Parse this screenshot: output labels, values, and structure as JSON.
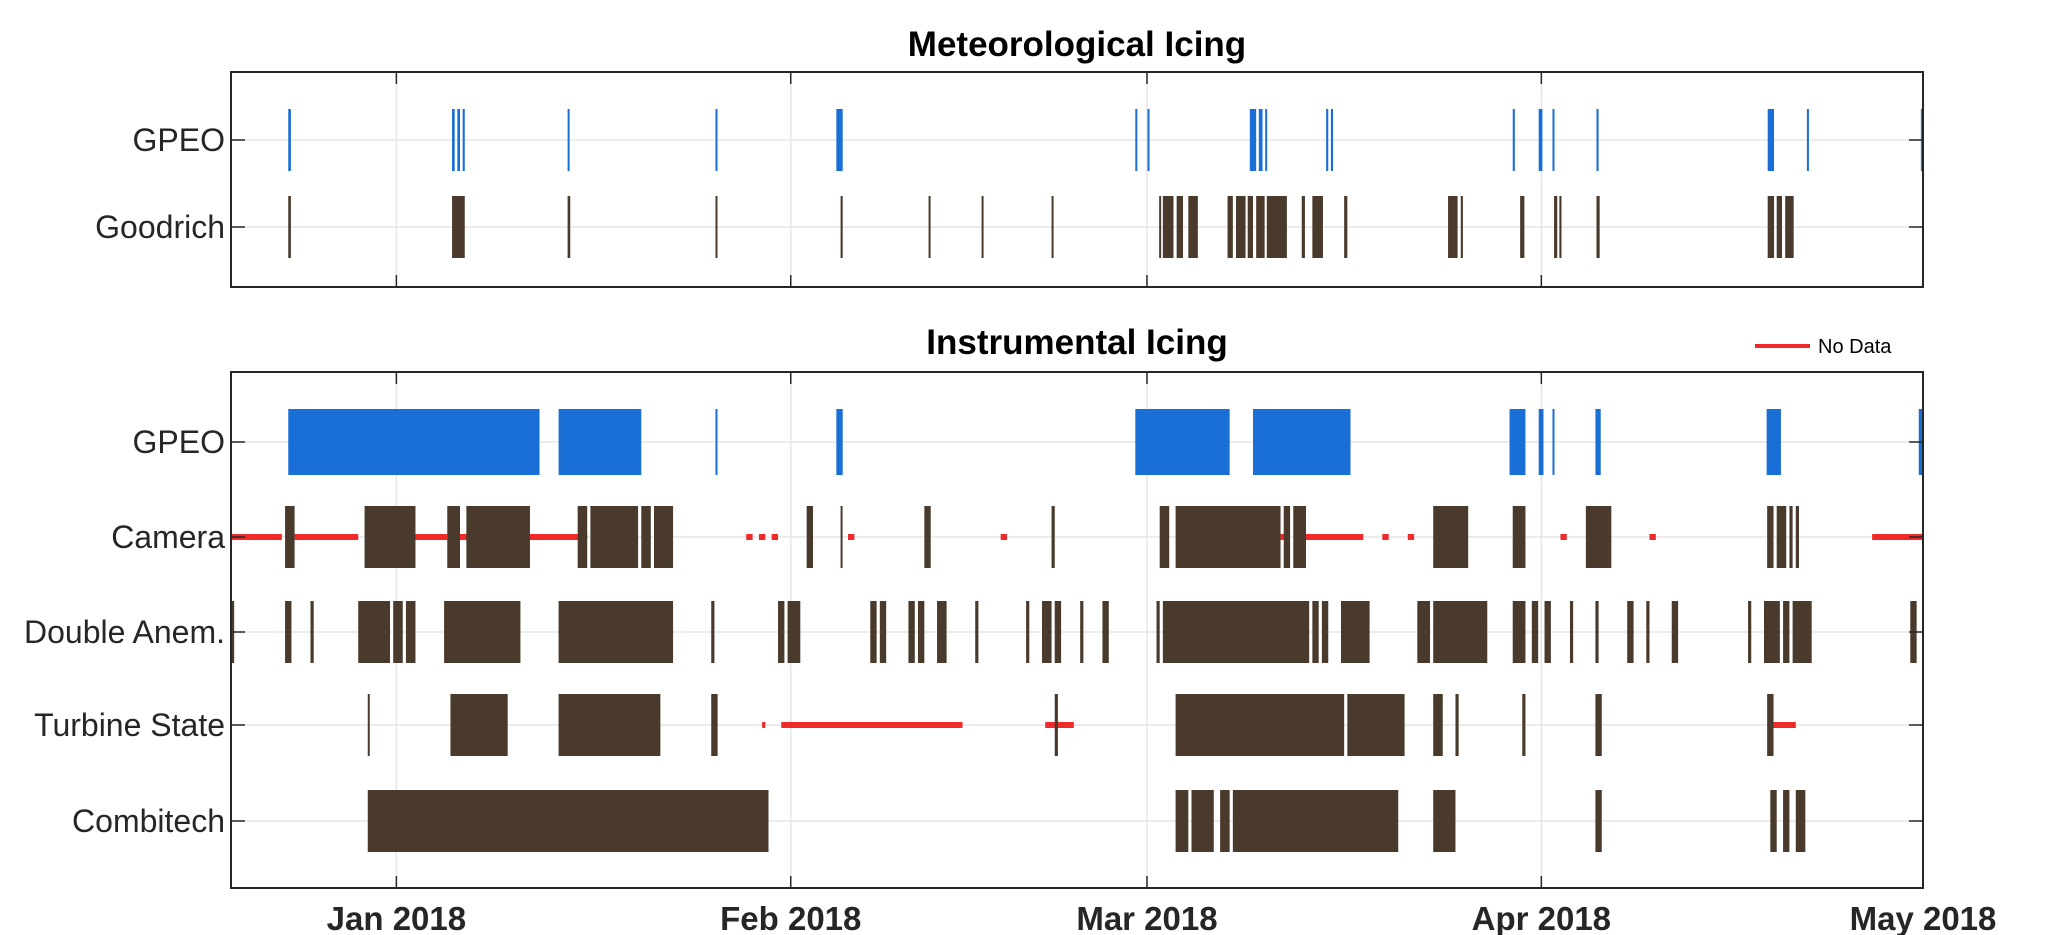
{
  "colors": {
    "gpeo": "#1a6fd6",
    "icing": "#4a3a2c",
    "nodata": "#ee2a2a",
    "grid": "#e6e6e6",
    "axis": "#262626"
  },
  "chart_data": [
    {
      "type": "timeline",
      "title": "Meteorological Icing",
      "x_range": [
        "2017-12-19",
        "2018-05-01"
      ],
      "x_ticks": [
        "2018-01-01",
        "2018-02-01",
        "2018-03-01",
        "2018-04-01",
        "2018-05-01"
      ],
      "x_tick_labels": [],
      "grid": true,
      "rows": [
        {
          "label": "GPEO",
          "kind": "gpeo",
          "intervals": [
            [
              "2017-12-23 12:00",
              "2017-12-23 17:00"
            ],
            [
              "2018-01-05 09:00",
              "2018-01-05 14:00"
            ],
            [
              "2018-01-05 19:00",
              "2018-01-06 00:00"
            ],
            [
              "2018-01-06 05:00",
              "2018-01-06 09:00"
            ],
            [
              "2018-01-14 11:00",
              "2018-01-14 13:00"
            ],
            [
              "2018-01-26 02:00",
              "2018-01-26 04:00"
            ],
            [
              "2018-02-04 14:00",
              "2018-02-05 02:00"
            ],
            [
              "2018-02-28 02:00",
              "2018-02-28 04:00"
            ],
            [
              "2018-03-01 01:00",
              "2018-03-01 03:00"
            ],
            [
              "2018-03-09 02:00",
              "2018-03-09 14:00"
            ],
            [
              "2018-03-09 19:00",
              "2018-03-10 02:00"
            ],
            [
              "2018-03-10 07:00",
              "2018-03-10 10:00"
            ],
            [
              "2018-03-15 02:00",
              "2018-03-15 06:00"
            ],
            [
              "2018-03-15 11:00",
              "2018-03-15 15:00"
            ],
            [
              "2018-03-29 18:00",
              "2018-03-29 22:00"
            ],
            [
              "2018-03-31 19:00",
              "2018-04-01 02:00"
            ],
            [
              "2018-04-01 21:00",
              "2018-04-01 23:00"
            ],
            [
              "2018-04-05 08:00",
              "2018-04-05 12:00"
            ],
            [
              "2018-04-18 19:00",
              "2018-04-19 07:00"
            ],
            [
              "2018-04-21 21:00",
              "2018-04-21 23:00"
            ],
            [
              "2018-04-30 20:00",
              "2018-04-30 23:00"
            ]
          ]
        },
        {
          "label": "Goodrich",
          "kind": "icing",
          "intervals": [
            [
              "2017-12-23 12:00",
              "2017-12-23 17:00"
            ],
            [
              "2018-01-05 09:00",
              "2018-01-06 09:00"
            ],
            [
              "2018-01-14 11:00",
              "2018-01-14 16:00"
            ],
            [
              "2018-01-26 02:00",
              "2018-01-26 04:00"
            ],
            [
              "2018-02-04 22:00",
              "2018-02-05 02:00"
            ],
            [
              "2018-02-11 20:00",
              "2018-02-11 23:00"
            ],
            [
              "2018-02-16 00:00",
              "2018-02-16 02:00"
            ],
            [
              "2018-02-21 12:00",
              "2018-02-21 15:00"
            ],
            [
              "2018-03-01 23:00",
              "2018-03-02 02:00"
            ],
            [
              "2018-03-02 06:00",
              "2018-03-03 02:00"
            ],
            [
              "2018-03-03 08:00",
              "2018-03-03 20:00"
            ],
            [
              "2018-03-04 06:00",
              "2018-03-05 00:00"
            ],
            [
              "2018-03-07 08:00",
              "2018-03-07 18:00"
            ],
            [
              "2018-03-08 00:00",
              "2018-03-08 18:00"
            ],
            [
              "2018-03-08 22:00",
              "2018-03-09 08:00"
            ],
            [
              "2018-03-09 14:00",
              "2018-03-10 06:00"
            ],
            [
              "2018-03-10 10:00",
              "2018-03-12 00:00"
            ],
            [
              "2018-03-13 04:00",
              "2018-03-13 10:00"
            ],
            [
              "2018-03-14 00:00",
              "2018-03-14 20:00"
            ],
            [
              "2018-03-16 12:00",
              "2018-03-16 18:00"
            ],
            [
              "2018-03-24 16:00",
              "2018-03-25 10:00"
            ],
            [
              "2018-03-25 16:00",
              "2018-03-25 20:00"
            ],
            [
              "2018-03-30 08:00",
              "2018-03-30 16:00"
            ],
            [
              "2018-04-02 00:00",
              "2018-04-02 06:00"
            ],
            [
              "2018-04-02 10:00",
              "2018-04-02 14:00"
            ],
            [
              "2018-04-05 08:00",
              "2018-04-05 14:00"
            ],
            [
              "2018-04-18 19:00",
              "2018-04-19 07:00"
            ],
            [
              "2018-04-19 12:00",
              "2018-04-19 22:00"
            ],
            [
              "2018-04-20 04:00",
              "2018-04-20 20:00"
            ]
          ]
        }
      ]
    },
    {
      "type": "timeline",
      "title": "Instrumental Icing",
      "legend": "No Data",
      "legend_position": "top-right",
      "x_range": [
        "2017-12-19",
        "2018-05-01"
      ],
      "x_ticks": [
        "2018-01-01",
        "2018-02-01",
        "2018-03-01",
        "2018-04-01",
        "2018-05-01"
      ],
      "x_tick_labels": [
        "Jan 2018",
        "Feb 2018",
        "Mar 2018",
        "Apr 2018",
        "May 2018"
      ],
      "grid": true,
      "rows": [
        {
          "label": "GPEO",
          "kind": "gpeo",
          "intervals": [
            [
              "2017-12-23 12:00",
              "2018-01-12 06:00"
            ],
            [
              "2018-01-13 18:00",
              "2018-01-20 06:00"
            ],
            [
              "2018-01-26 02:00",
              "2018-01-26 05:00"
            ],
            [
              "2018-02-04 14:00",
              "2018-02-05 02:00"
            ],
            [
              "2018-02-28 02:00",
              "2018-03-07 12:00"
            ],
            [
              "2018-03-09 08:00",
              "2018-03-17 00:00"
            ],
            [
              "2018-03-29 12:00",
              "2018-03-30 18:00"
            ],
            [
              "2018-03-31 19:00",
              "2018-04-01 04:00"
            ],
            [
              "2018-04-01 21:00",
              "2018-04-01 23:00"
            ],
            [
              "2018-04-05 06:00",
              "2018-04-05 16:00"
            ],
            [
              "2018-04-18 17:00",
              "2018-04-19 20:00"
            ],
            [
              "2018-04-30 16:00",
              "2018-05-01 00:00"
            ]
          ]
        },
        {
          "label": "Camera",
          "kind": "icing",
          "nodata": [
            [
              "2017-12-19 00:00",
              "2017-12-23 00:00"
            ],
            [
              "2017-12-24 00:00",
              "2017-12-29 00:00"
            ],
            [
              "2017-12-31 12:00",
              "2018-01-05 00:00"
            ],
            [
              "2018-01-06 00:00",
              "2018-01-07 00:00"
            ],
            [
              "2018-01-10 00:00",
              "2018-01-16 00:00"
            ],
            [
              "2018-01-22 00:00",
              "2018-01-22 12:00"
            ],
            [
              "2018-01-28 12:00",
              "2018-01-29 00:00"
            ],
            [
              "2018-01-29 12:00",
              "2018-01-30 00:00"
            ],
            [
              "2018-01-30 12:00",
              "2018-01-31 00:00"
            ],
            [
              "2018-02-05 12:00",
              "2018-02-06 00:00"
            ],
            [
              "2018-02-17 12:00",
              "2018-02-18 00:00"
            ],
            [
              "2018-03-10 00:00",
              "2018-03-12 00:00"
            ],
            [
              "2018-03-13 12:00",
              "2018-03-18 00:00"
            ],
            [
              "2018-03-19 12:00",
              "2018-03-20 00:00"
            ],
            [
              "2018-03-21 12:00",
              "2018-03-22 00:00"
            ],
            [
              "2018-04-02 12:00",
              "2018-04-03 00:00"
            ],
            [
              "2018-04-09 12:00",
              "2018-04-10 00:00"
            ],
            [
              "2018-04-27 00:00",
              "2018-05-01 00:00"
            ]
          ],
          "intervals": [
            [
              "2017-12-23 06:00",
              "2017-12-24 00:00"
            ],
            [
              "2017-12-29 12:00",
              "2018-01-02 12:00"
            ],
            [
              "2018-01-05 00:00",
              "2018-01-06 00:00"
            ],
            [
              "2018-01-06 12:00",
              "2018-01-11 12:00"
            ],
            [
              "2018-01-15 06:00",
              "2018-01-16 00:00"
            ],
            [
              "2018-01-16 06:00",
              "2018-01-20 00:00"
            ],
            [
              "2018-01-20 06:00",
              "2018-01-21 00:00"
            ],
            [
              "2018-01-21 06:00",
              "2018-01-22 18:00"
            ],
            [
              "2018-02-02 06:00",
              "2018-02-02 18:00"
            ],
            [
              "2018-02-04 22:00",
              "2018-02-05 00:00"
            ],
            [
              "2018-02-11 12:00",
              "2018-02-12 00:00"
            ],
            [
              "2018-02-21 12:00",
              "2018-02-21 18:00"
            ],
            [
              "2018-03-02 00:00",
              "2018-03-02 18:00"
            ],
            [
              "2018-03-03 06:00",
              "2018-03-11 12:00"
            ],
            [
              "2018-03-11 18:00",
              "2018-03-12 06:00"
            ],
            [
              "2018-03-12 12:00",
              "2018-03-13 12:00"
            ],
            [
              "2018-03-23 12:00",
              "2018-03-26 06:00"
            ],
            [
              "2018-03-29 18:00",
              "2018-03-30 18:00"
            ],
            [
              "2018-04-04 12:00",
              "2018-04-06 12:00"
            ],
            [
              "2018-04-18 18:00",
              "2018-04-19 06:00"
            ],
            [
              "2018-04-19 12:00",
              "2018-04-20 06:00"
            ],
            [
              "2018-04-20 12:00",
              "2018-04-20 18:00"
            ],
            [
              "2018-04-21 00:00",
              "2018-04-21 06:00"
            ]
          ]
        },
        {
          "label": "Double Anem.",
          "kind": "icing",
          "intervals": [
            [
              "2017-12-19 00:00",
              "2017-12-19 06:00"
            ],
            [
              "2017-12-23 06:00",
              "2017-12-23 18:00"
            ],
            [
              "2017-12-25 06:00",
              "2017-12-25 12:00"
            ],
            [
              "2017-12-29 00:00",
              "2017-12-31 12:00"
            ],
            [
              "2017-12-31 18:00",
              "2018-01-01 12:00"
            ],
            [
              "2018-01-01 18:00",
              "2018-01-02 12:00"
            ],
            [
              "2018-01-04 18:00",
              "2018-01-10 18:00"
            ],
            [
              "2018-01-13 18:00",
              "2018-01-22 18:00"
            ],
            [
              "2018-01-25 18:00",
              "2018-01-26 00:00"
            ],
            [
              "2018-01-31 00:00",
              "2018-01-31 12:00"
            ],
            [
              "2018-01-31 18:00",
              "2018-02-01 18:00"
            ],
            [
              "2018-02-07 06:00",
              "2018-02-07 18:00"
            ],
            [
              "2018-02-08 00:00",
              "2018-02-08 12:00"
            ],
            [
              "2018-02-10 06:00",
              "2018-02-10 18:00"
            ],
            [
              "2018-02-11 00:00",
              "2018-02-11 12:00"
            ],
            [
              "2018-02-12 12:00",
              "2018-02-13 06:00"
            ],
            [
              "2018-02-15 12:00",
              "2018-02-15 18:00"
            ],
            [
              "2018-02-19 12:00",
              "2018-02-19 18:00"
            ],
            [
              "2018-02-20 18:00",
              "2018-02-21 12:00"
            ],
            [
              "2018-02-21 18:00",
              "2018-02-22 06:00"
            ],
            [
              "2018-02-23 18:00",
              "2018-02-24 00:00"
            ],
            [
              "2018-02-25 12:00",
              "2018-02-26 00:00"
            ],
            [
              "2018-03-01 18:00",
              "2018-03-02 00:00"
            ],
            [
              "2018-03-02 06:00",
              "2018-03-13 18:00"
            ],
            [
              "2018-03-14 00:00",
              "2018-03-14 12:00"
            ],
            [
              "2018-03-14 18:00",
              "2018-03-15 06:00"
            ],
            [
              "2018-03-16 06:00",
              "2018-03-18 12:00"
            ],
            [
              "2018-03-22 06:00",
              "2018-03-23 06:00"
            ],
            [
              "2018-03-23 12:00",
              "2018-03-27 18:00"
            ],
            [
              "2018-03-29 18:00",
              "2018-03-30 18:00"
            ],
            [
              "2018-03-31 06:00",
              "2018-03-31 18:00"
            ],
            [
              "2018-04-01 06:00",
              "2018-04-01 18:00"
            ],
            [
              "2018-04-03 06:00",
              "2018-04-03 12:00"
            ],
            [
              "2018-04-05 06:00",
              "2018-04-05 12:00"
            ],
            [
              "2018-04-07 18:00",
              "2018-04-08 06:00"
            ],
            [
              "2018-04-09 06:00",
              "2018-04-09 12:00"
            ],
            [
              "2018-04-11 06:00",
              "2018-04-11 18:00"
            ],
            [
              "2018-04-17 06:00",
              "2018-04-17 12:00"
            ],
            [
              "2018-04-18 12:00",
              "2018-04-19 18:00"
            ],
            [
              "2018-04-20 00:00",
              "2018-04-20 12:00"
            ],
            [
              "2018-04-20 18:00",
              "2018-04-22 06:00"
            ],
            [
              "2018-04-30 00:00",
              "2018-04-30 12:00"
            ]
          ]
        },
        {
          "label": "Turbine State",
          "kind": "icing",
          "nodata": [
            [
              "2018-01-29 18:00",
              "2018-01-30 00:00"
            ],
            [
              "2018-01-31 06:00",
              "2018-02-14 12:00"
            ],
            [
              "2018-02-21 00:00",
              "2018-02-23 06:00"
            ],
            [
              "2018-03-14 12:00",
              "2018-03-15 18:00"
            ],
            [
              "2018-04-19 06:00",
              "2018-04-21 00:00"
            ]
          ],
          "intervals": [
            [
              "2017-12-29 18:00",
              "2017-12-29 20:00"
            ],
            [
              "2018-01-05 06:00",
              "2018-01-09 18:00"
            ],
            [
              "2018-01-13 18:00",
              "2018-01-21 18:00"
            ],
            [
              "2018-01-25 18:00",
              "2018-01-26 06:00"
            ],
            [
              "2018-02-21 18:00",
              "2018-02-22 00:00"
            ],
            [
              "2018-03-03 06:00",
              "2018-03-16 12:00"
            ],
            [
              "2018-03-16 18:00",
              "2018-03-21 06:00"
            ],
            [
              "2018-03-23 12:00",
              "2018-03-24 06:00"
            ],
            [
              "2018-03-25 06:00",
              "2018-03-25 12:00"
            ],
            [
              "2018-03-30 12:00",
              "2018-03-30 18:00"
            ],
            [
              "2018-04-05 06:00",
              "2018-04-05 18:00"
            ],
            [
              "2018-04-18 18:00",
              "2018-04-19 06:00"
            ]
          ]
        },
        {
          "label": "Combitech",
          "kind": "icing",
          "intervals": [
            [
              "2017-12-29 18:00",
              "2018-01-30 06:00"
            ],
            [
              "2018-01-05 12:00",
              "2018-01-06 06:00"
            ],
            [
              "2018-01-07 18:00",
              "2018-01-10 06:00"
            ],
            [
              "2018-01-13 18:00",
              "2018-01-18 18:00"
            ],
            [
              "2018-01-25 12:00",
              "2018-01-29 00:00"
            ],
            [
              "2018-03-03 06:00",
              "2018-03-04 06:00"
            ],
            [
              "2018-03-04 12:00",
              "2018-03-06 06:00"
            ],
            [
              "2018-03-06 18:00",
              "2018-03-07 12:00"
            ],
            [
              "2018-03-07 18:00",
              "2018-03-20 18:00"
            ],
            [
              "2018-03-23 12:00",
              "2018-03-25 06:00"
            ],
            [
              "2018-04-05 06:00",
              "2018-04-05 18:00"
            ],
            [
              "2018-04-19 00:00",
              "2018-04-19 12:00"
            ],
            [
              "2018-04-20 00:00",
              "2018-04-20 12:00"
            ],
            [
              "2018-04-21 00:00",
              "2018-04-21 18:00"
            ]
          ]
        }
      ]
    }
  ]
}
